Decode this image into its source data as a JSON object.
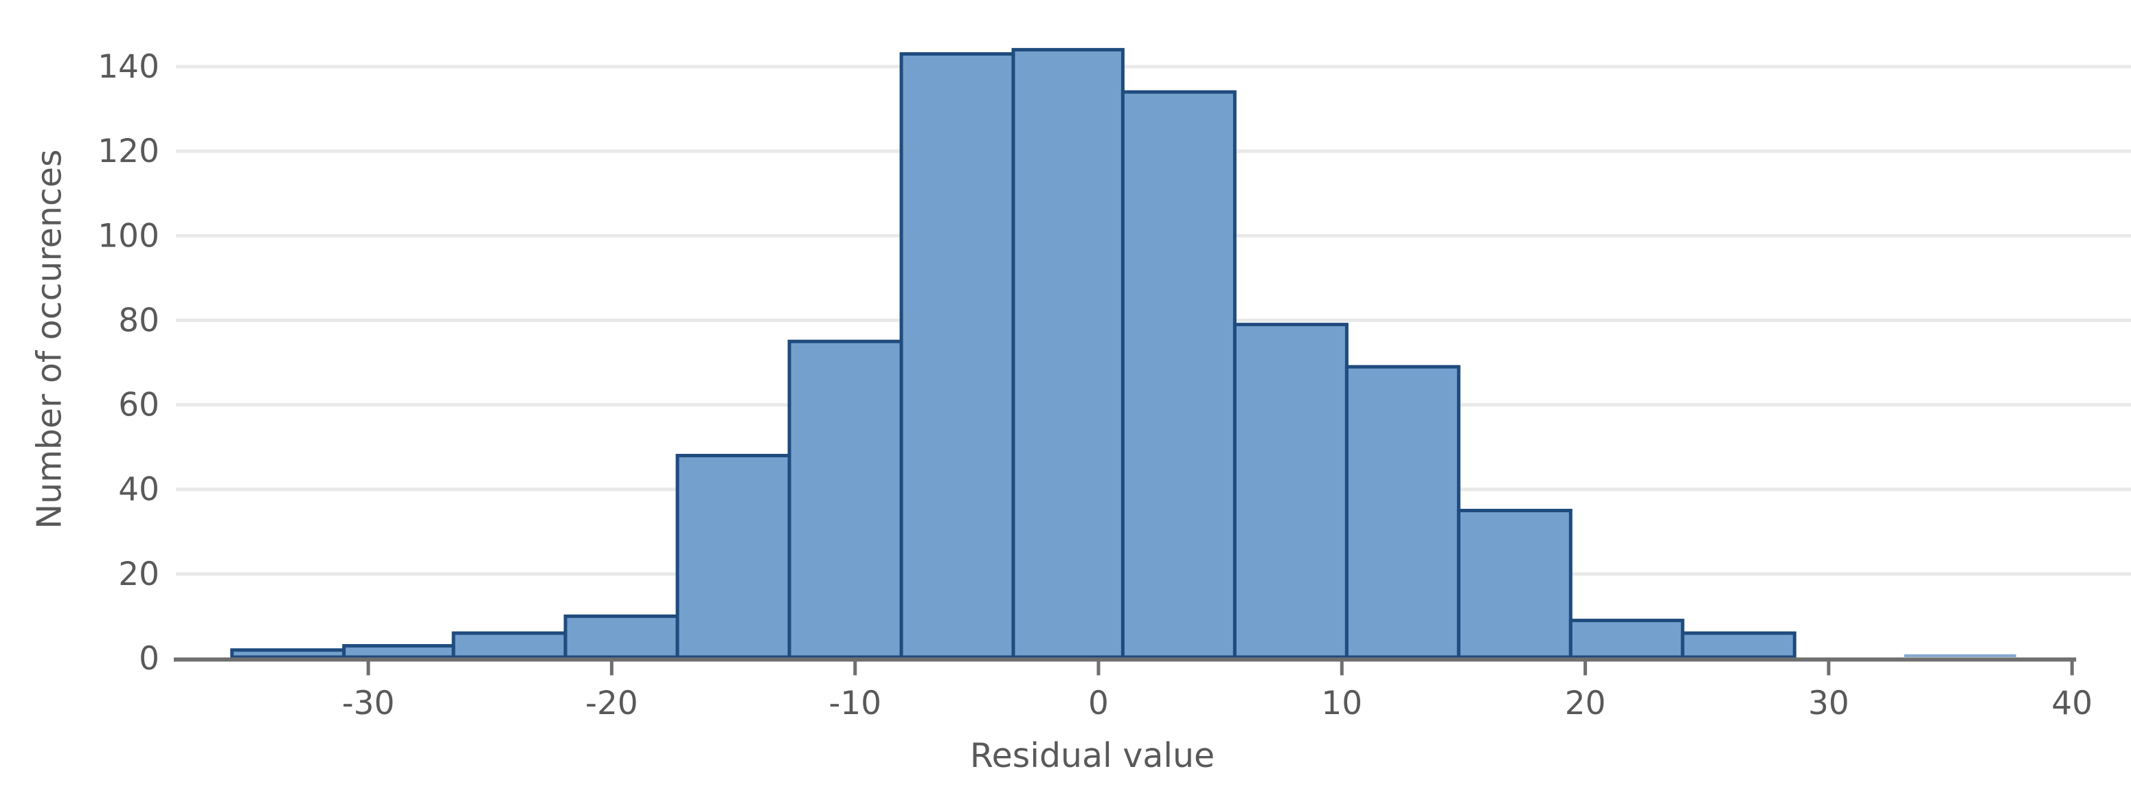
{
  "chart_data": {
    "type": "histogram",
    "title": "",
    "xlabel": "Residual value",
    "ylabel": "Number of occurences",
    "bin_edges": [
      -35.6,
      -31.0,
      -26.5,
      -21.9,
      -17.3,
      -12.7,
      -8.1,
      -3.5,
      1.0,
      5.6,
      10.2,
      14.8,
      19.4,
      24.0,
      28.6,
      33.1,
      37.7
    ],
    "counts": [
      2,
      3,
      6,
      10,
      48,
      75,
      143,
      144,
      134,
      79,
      69,
      35,
      9,
      6,
      0,
      1
    ],
    "x_ticks": [
      -30,
      -20,
      -10,
      0,
      10,
      20,
      30,
      40
    ],
    "y_ticks": [
      0,
      20,
      40,
      60,
      80,
      100,
      120,
      140
    ],
    "xlim": [
      -38.1,
      40
    ],
    "ylim": [
      0,
      145
    ],
    "grid": "horizontal",
    "legend": "none",
    "style": {
      "borderless_bins": [
        15
      ]
    },
    "colors": {
      "bar_fill": "#74A0CE",
      "bar_border": "#1F4B7E",
      "borderless_bar_fill": "#84A9D3",
      "gridline": "#E9E9E9",
      "axis_line": "#6F6F6F",
      "tick_mark": "#6F6F6F",
      "tick_label": "#595959",
      "axis_title": "#595959",
      "background": "#FFFFFF"
    }
  }
}
